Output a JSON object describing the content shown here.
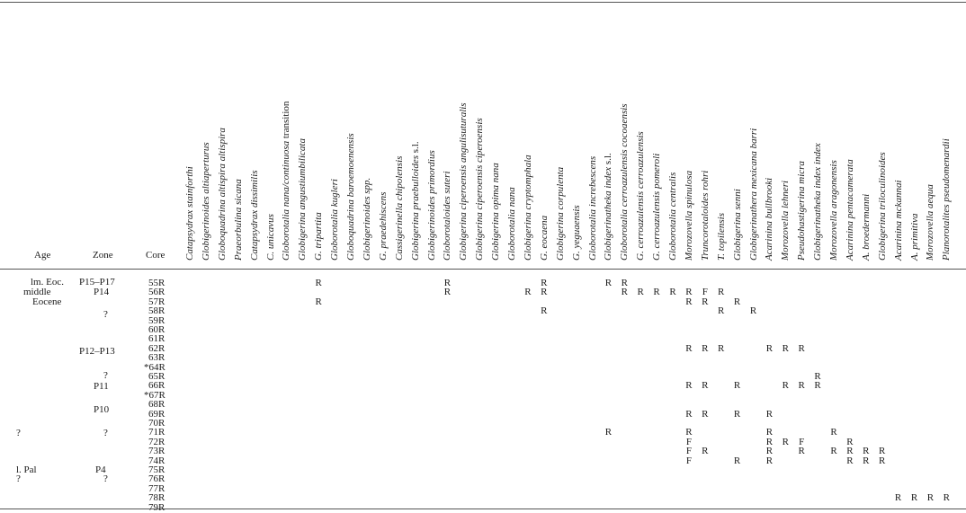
{
  "headers": {
    "age": "Age",
    "zone": "Zone",
    "core": "Core"
  },
  "species": [
    {
      "name": "Catapsydrax stainforthi"
    },
    {
      "name": "Globigerinoides altiaperturus"
    },
    {
      "name": "Globoquadrina altispira altispira"
    },
    {
      "name": "Praeorbulina sicana"
    },
    {
      "name": "Catapsydrax dissimilis"
    },
    {
      "name": "C. unicavus"
    },
    {
      "name": "Globorotalia nana/continuosa",
      "suffix": " transition"
    },
    {
      "name": "Globigerina angustiumbilicata"
    },
    {
      "name": "G. tripartita"
    },
    {
      "name": "Globorotalia kugleri"
    },
    {
      "name": "Globoquadrina baroemoenensis"
    },
    {
      "name": "Globigerinoides spp."
    },
    {
      "name": "G. praedehiscens"
    },
    {
      "name": "Cassigerinella chipolensis"
    },
    {
      "name": "Globigerina praebulloides",
      "suffix": " s.l."
    },
    {
      "name": "Globigerinoides primordius"
    },
    {
      "name": "Globorotaloides suteri"
    },
    {
      "name": "Globigerina ciperoensis angulisuturalis"
    },
    {
      "name": "Globigerina ciperoensis ciperoensis"
    },
    {
      "name": "Globigerina opima nana"
    },
    {
      "name": "Globorotalia nana"
    },
    {
      "name": "Globigerina cryptomphala"
    },
    {
      "name": "G. eocaena"
    },
    {
      "name": "Globigerina corpulenta"
    },
    {
      "name": "G. yeguaensis"
    },
    {
      "name": "Globorotalia increbescens"
    },
    {
      "name": "Globigerinatheka index",
      "suffix": " s.l."
    },
    {
      "name": "Globorotalia cerroazulensis cocoaensis"
    },
    {
      "name": "G. cerroazulensis cerroazulensis"
    },
    {
      "name": "G. cerroazulensis pomeroli"
    },
    {
      "name": "Globorotalia centralis"
    },
    {
      "name": "Morozovella spinulosa"
    },
    {
      "name": "Truncorotaloides rohri"
    },
    {
      "name": "T. topilensis"
    },
    {
      "name": "Globigerina senni"
    },
    {
      "name": "Globigerinathera mexicana barri"
    },
    {
      "name": "Acarinina bullbrooki"
    },
    {
      "name": "Morozovella lehneri"
    },
    {
      "name": "Pseudohastigerina micra"
    },
    {
      "name": "Globigerinatheka index index"
    },
    {
      "name": "Morozovella aragonensis"
    },
    {
      "name": "Acarinina pentacamerata"
    },
    {
      "name": "A. broedermanni"
    },
    {
      "name": "Globigerina triloculinoides"
    },
    {
      "name": "Acarinina mckannai"
    },
    {
      "name": "A. primitiva"
    },
    {
      "name": "Morozovella aequa"
    },
    {
      "name": "Planorotalites pseudomenardii"
    }
  ],
  "ages": [
    "lm. Eoc.",
    "middle",
    "Eocene",
    "?",
    "l. Pal",
    "?"
  ],
  "zones": [
    "P15–P17",
    "P14",
    "?",
    "P12–P13",
    "?",
    "P11",
    "P10",
    "?",
    "P4",
    "?"
  ],
  "cores": [
    "55R",
    "56R",
    "57R",
    "58R",
    "59R",
    "60R",
    "61R",
    "62R",
    "63R",
    "*64R",
    "65R",
    "66R",
    "*67R",
    "68R",
    "69R",
    "70R",
    "71R",
    "72R",
    "73R",
    "74R",
    "75R",
    "76R",
    "77R",
    "78R",
    "79R"
  ],
  "occurrences": [
    {
      "core": 0,
      "species": 8,
      "mark": "R"
    },
    {
      "core": 0,
      "species": 16,
      "mark": "R"
    },
    {
      "core": 0,
      "species": 22,
      "mark": "R"
    },
    {
      "core": 0,
      "species": 26,
      "mark": "R"
    },
    {
      "core": 0,
      "species": 27,
      "mark": "R"
    },
    {
      "core": 1,
      "species": 16,
      "mark": "R"
    },
    {
      "core": 1,
      "species": 21,
      "mark": "R"
    },
    {
      "core": 1,
      "species": 22,
      "mark": "R"
    },
    {
      "core": 1,
      "species": 27,
      "mark": "R"
    },
    {
      "core": 1,
      "species": 28,
      "mark": "R"
    },
    {
      "core": 1,
      "species": 29,
      "mark": "R"
    },
    {
      "core": 1,
      "species": 30,
      "mark": "R"
    },
    {
      "core": 1,
      "species": 31,
      "mark": "R"
    },
    {
      "core": 1,
      "species": 32,
      "mark": "F"
    },
    {
      "core": 1,
      "species": 33,
      "mark": "R"
    },
    {
      "core": 2,
      "species": 8,
      "mark": "R"
    },
    {
      "core": 2,
      "species": 31,
      "mark": "R"
    },
    {
      "core": 2,
      "species": 32,
      "mark": "R"
    },
    {
      "core": 2,
      "species": 34,
      "mark": "R"
    },
    {
      "core": 3,
      "species": 22,
      "mark": "R"
    },
    {
      "core": 3,
      "species": 33,
      "mark": "R"
    },
    {
      "core": 3,
      "species": 35,
      "mark": "R"
    },
    {
      "core": 7,
      "species": 31,
      "mark": "R"
    },
    {
      "core": 7,
      "species": 32,
      "mark": "R"
    },
    {
      "core": 7,
      "species": 33,
      "mark": "R"
    },
    {
      "core": 7,
      "species": 36,
      "mark": "R"
    },
    {
      "core": 7,
      "species": 37,
      "mark": "R"
    },
    {
      "core": 7,
      "species": 38,
      "mark": "R"
    },
    {
      "core": 10,
      "species": 39,
      "mark": "R"
    },
    {
      "core": 11,
      "species": 31,
      "mark": "R"
    },
    {
      "core": 11,
      "species": 32,
      "mark": "R"
    },
    {
      "core": 11,
      "species": 34,
      "mark": "R"
    },
    {
      "core": 11,
      "species": 37,
      "mark": "R"
    },
    {
      "core": 11,
      "species": 38,
      "mark": "R"
    },
    {
      "core": 11,
      "species": 39,
      "mark": "R"
    },
    {
      "core": 14,
      "species": 31,
      "mark": "R"
    },
    {
      "core": 14,
      "species": 32,
      "mark": "R"
    },
    {
      "core": 14,
      "species": 34,
      "mark": "R"
    },
    {
      "core": 14,
      "species": 36,
      "mark": "R"
    },
    {
      "core": 16,
      "species": 26,
      "mark": "R"
    },
    {
      "core": 16,
      "species": 31,
      "mark": "R"
    },
    {
      "core": 16,
      "species": 36,
      "mark": "R"
    },
    {
      "core": 16,
      "species": 40,
      "mark": "R"
    },
    {
      "core": 17,
      "species": 31,
      "mark": "F"
    },
    {
      "core": 17,
      "species": 36,
      "mark": "R"
    },
    {
      "core": 17,
      "species": 37,
      "mark": "R"
    },
    {
      "core": 17,
      "species": 38,
      "mark": "F"
    },
    {
      "core": 17,
      "species": 41,
      "mark": "R"
    },
    {
      "core": 18,
      "species": 31,
      "mark": "F"
    },
    {
      "core": 18,
      "species": 32,
      "mark": "R"
    },
    {
      "core": 18,
      "species": 36,
      "mark": "R"
    },
    {
      "core": 18,
      "species": 38,
      "mark": "R"
    },
    {
      "core": 18,
      "species": 40,
      "mark": "R"
    },
    {
      "core": 18,
      "species": 41,
      "mark": "R"
    },
    {
      "core": 18,
      "species": 42,
      "mark": "R"
    },
    {
      "core": 18,
      "species": 43,
      "mark": "R"
    },
    {
      "core": 19,
      "species": 31,
      "mark": "F"
    },
    {
      "core": 19,
      "species": 34,
      "mark": "R"
    },
    {
      "core": 19,
      "species": 36,
      "mark": "R"
    },
    {
      "core": 19,
      "species": 41,
      "mark": "R"
    },
    {
      "core": 19,
      "species": 42,
      "mark": "R"
    },
    {
      "core": 19,
      "species": 43,
      "mark": "R"
    },
    {
      "core": 23,
      "species": 44,
      "mark": "R"
    },
    {
      "core": 23,
      "species": 45,
      "mark": "R"
    },
    {
      "core": 23,
      "species": 46,
      "mark": "R"
    },
    {
      "core": 23,
      "species": 47,
      "mark": "R"
    }
  ]
}
